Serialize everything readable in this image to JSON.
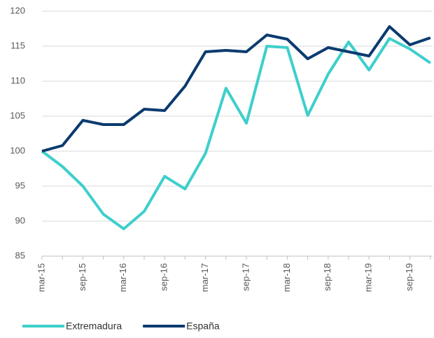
{
  "chart_data": {
    "type": "line",
    "categories": [
      "mar-15",
      null,
      "sep-15",
      null,
      "mar-16",
      null,
      "sep-16",
      null,
      "mar-17",
      null,
      "sep-17",
      null,
      "mar-18",
      null,
      "sep-18",
      null,
      "mar-19",
      null,
      "sep-19",
      null
    ],
    "series": [
      {
        "name": "Extremadura",
        "color": "#3ecfcc",
        "values": [
          100,
          97.8,
          95,
          91,
          88.9,
          91.4,
          96.4,
          94.6,
          99.7,
          109,
          104,
          115,
          114.8,
          105.1,
          111,
          115.6,
          111.6,
          116.1,
          114.6,
          112.6
        ]
      },
      {
        "name": "España",
        "color": "#0b3b6f",
        "values": [
          100,
          100.8,
          104.4,
          103.8,
          103.8,
          106,
          105.8,
          109.3,
          114.2,
          114.4,
          114.2,
          116.6,
          116,
          113.2,
          114.8,
          114.2,
          113.6,
          117.8,
          115.2,
          116.2
        ]
      }
    ],
    "ylim": [
      85,
      120
    ],
    "yticks": [
      85,
      90,
      95,
      100,
      105,
      110,
      115,
      120
    ],
    "grid": true
  }
}
